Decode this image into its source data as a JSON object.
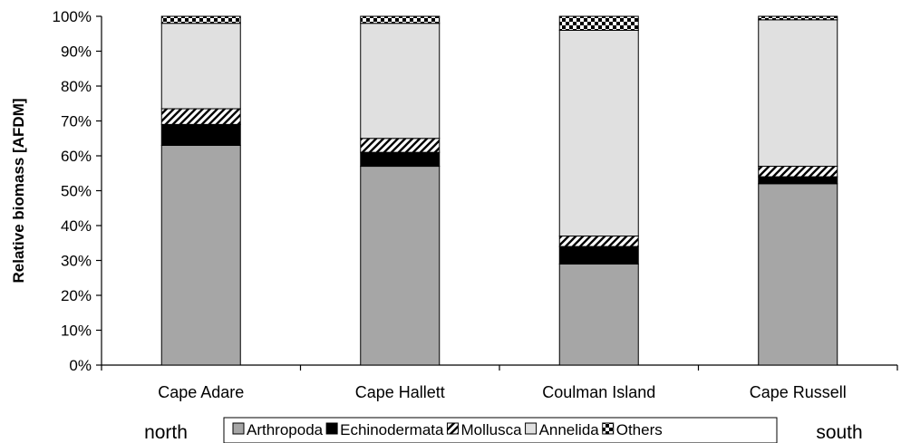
{
  "chart_data": {
    "type": "bar",
    "stacked": true,
    "title": "",
    "xlabel": "",
    "ylabel": "Relative biomass [AFDM]",
    "ylim": [
      0,
      100
    ],
    "yticks": [
      "0%",
      "10%",
      "20%",
      "30%",
      "40%",
      "50%",
      "60%",
      "70%",
      "80%",
      "90%",
      "100%"
    ],
    "grid": false,
    "legend_position": "bottom",
    "categories": [
      "Cape Adare",
      "Cape Hallett",
      "Coulman Island",
      "Cape Russell"
    ],
    "series": [
      {
        "name": "Arthropoda",
        "values": [
          63,
          57,
          29,
          52
        ],
        "color": "#a6a6a6",
        "fill": "solid"
      },
      {
        "name": "Echinodermata",
        "values": [
          6,
          4,
          5,
          2
        ],
        "color": "#000000",
        "fill": "solid"
      },
      {
        "name": "Mollusca",
        "values": [
          4.5,
          4,
          3,
          3
        ],
        "color": "#000000",
        "fill": "diagonal-hatch"
      },
      {
        "name": "Annelida",
        "values": [
          24.5,
          33,
          59,
          42
        ],
        "color": "#e0e0e0",
        "fill": "solid"
      },
      {
        "name": "Others",
        "values": [
          2,
          2,
          4,
          1
        ],
        "color": "#000000",
        "fill": "checkerboard"
      }
    ],
    "annotations": {
      "left": "north",
      "right": "south"
    }
  }
}
